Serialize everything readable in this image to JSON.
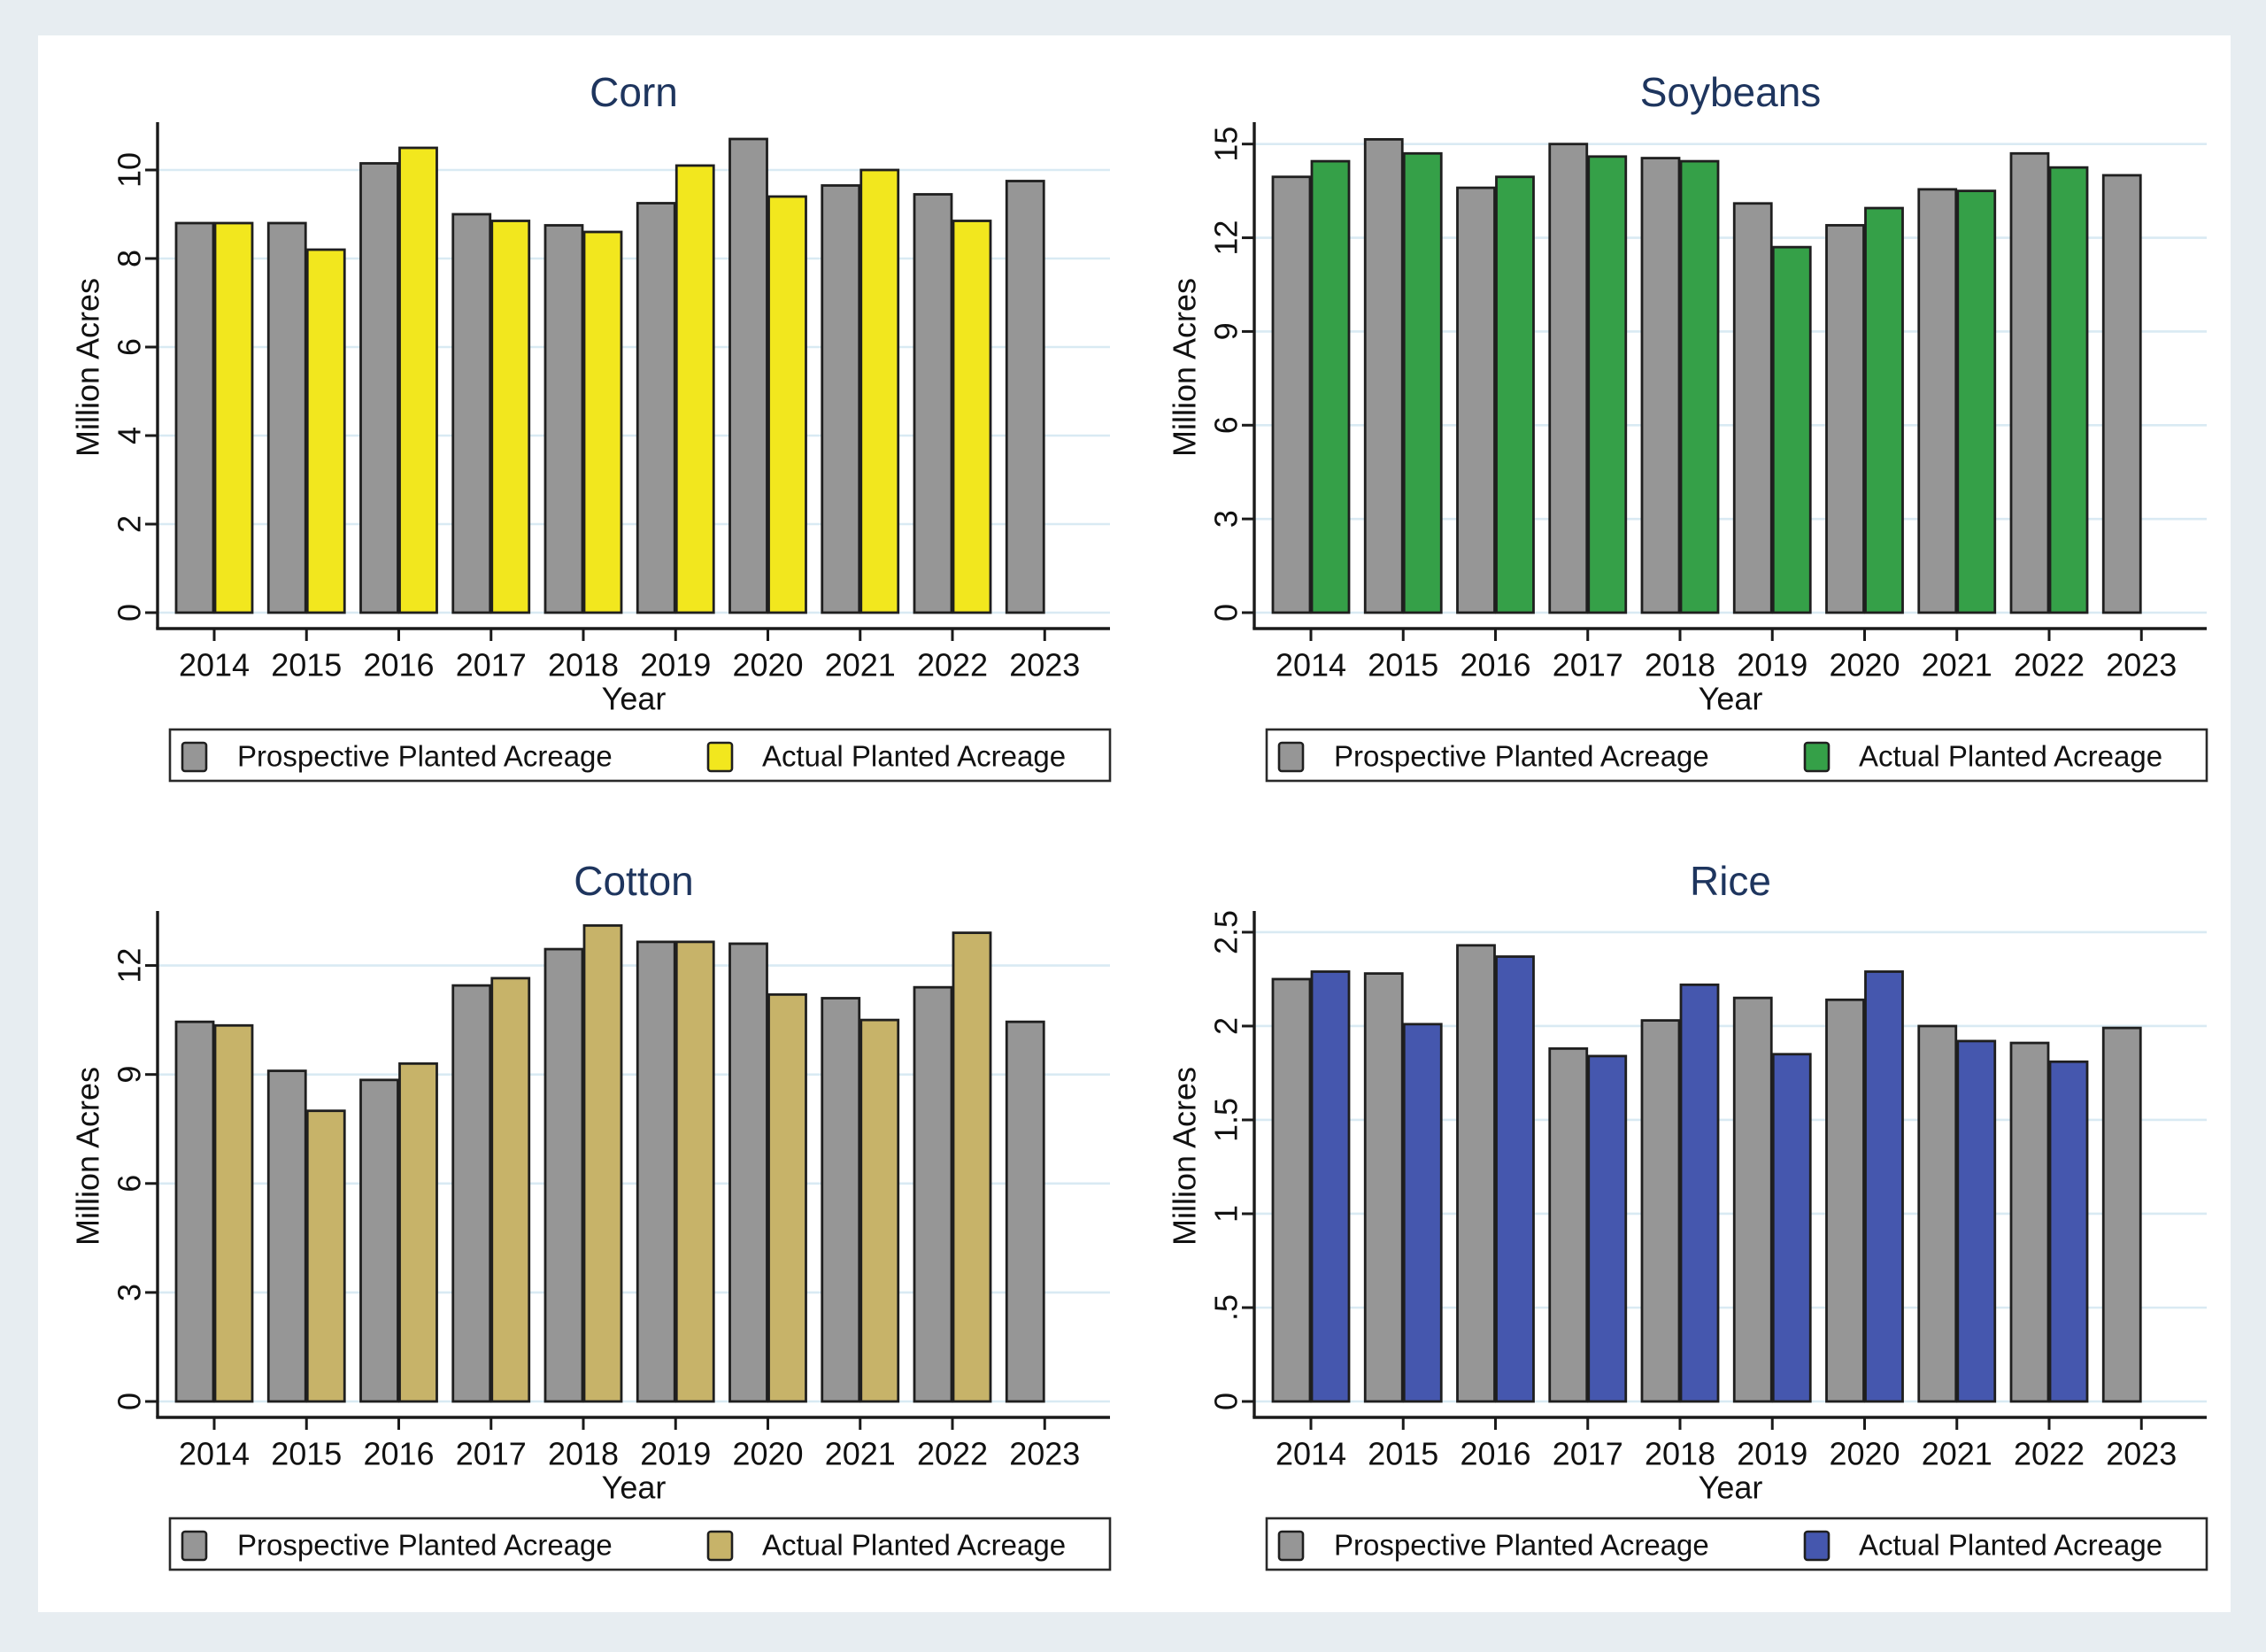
{
  "page": {
    "background_color": "#e7edf1",
    "canvas_color": "#ffffff",
    "grid_color": "#d9eaf3",
    "axis_color": "#1a1a1a",
    "bar_outline_color": "#1f1f1f",
    "title_color": "#1e355e",
    "tick_label_color": "#111111",
    "legend_border_color": "#2a2a2a"
  },
  "chart_data": [
    {
      "type": "bar",
      "title": "Corn",
      "xlabel": "Year",
      "ylabel": "Million Acres",
      "categories": [
        "2014",
        "2015",
        "2016",
        "2017",
        "2018",
        "2019",
        "2020",
        "2021",
        "2022",
        "2023"
      ],
      "series": [
        {
          "name": "Prospective Planted Acreage",
          "color": "#969696",
          "values": [
            8.8,
            8.8,
            10.15,
            9.0,
            8.75,
            9.25,
            10.7,
            9.65,
            9.45,
            9.75
          ]
        },
        {
          "name": "Actual Planted Acreage",
          "color": "#f2e71e",
          "values": [
            8.8,
            8.2,
            10.5,
            8.85,
            8.6,
            10.1,
            9.4,
            10.0,
            8.85,
            null
          ]
        }
      ],
      "yticks": [
        0,
        2,
        4,
        6,
        8,
        10
      ],
      "ytick_labels": [
        "0",
        "2",
        "4",
        "6",
        "8",
        "10"
      ],
      "ylim": [
        0,
        11.08
      ],
      "grid": true,
      "legend_position": "bottom"
    },
    {
      "type": "bar",
      "title": "Soybeans",
      "xlabel": "Year",
      "ylabel": "Million Acres",
      "categories": [
        "2014",
        "2015",
        "2016",
        "2017",
        "2018",
        "2019",
        "2020",
        "2021",
        "2022",
        "2023"
      ],
      "series": [
        {
          "name": "Prospective Planted Acreage",
          "color": "#969696",
          "values": [
            13.95,
            15.15,
            13.6,
            15.0,
            14.55,
            13.1,
            12.4,
            13.55,
            14.7,
            14.0
          ]
        },
        {
          "name": "Actual Planted Acreage",
          "color": "#35a048",
          "values": [
            14.45,
            14.7,
            13.95,
            14.6,
            14.45,
            11.7,
            12.95,
            13.5,
            14.25,
            null
          ]
        }
      ],
      "yticks": [
        0,
        3,
        6,
        9,
        12,
        15
      ],
      "ytick_labels": [
        "0",
        "3",
        "6",
        "9",
        "12",
        "15"
      ],
      "ylim": [
        0,
        15.7
      ],
      "grid": true,
      "legend_position": "bottom"
    },
    {
      "type": "bar",
      "title": "Cotton",
      "xlabel": "Year",
      "ylabel": "Million Acres",
      "categories": [
        "2014",
        "2015",
        "2016",
        "2017",
        "2018",
        "2019",
        "2020",
        "2021",
        "2022",
        "2023"
      ],
      "series": [
        {
          "name": "Prospective Planted Acreage",
          "color": "#969696",
          "values": [
            10.45,
            9.1,
            8.85,
            11.45,
            12.45,
            12.65,
            12.6,
            11.1,
            11.4,
            10.45
          ]
        },
        {
          "name": "Actual Planted Acreage",
          "color": "#c7b369",
          "values": [
            10.35,
            8.0,
            9.3,
            11.65,
            13.1,
            12.65,
            11.2,
            10.5,
            12.9,
            null
          ]
        }
      ],
      "yticks": [
        0,
        3,
        6,
        9,
        12
      ],
      "ytick_labels": [
        "0",
        "3",
        "6",
        "9",
        "12"
      ],
      "ylim": [
        0,
        13.5
      ],
      "grid": true,
      "legend_position": "bottom"
    },
    {
      "type": "bar",
      "title": "Rice",
      "xlabel": "Year",
      "ylabel": "Million Acres",
      "categories": [
        "2014",
        "2015",
        "2016",
        "2017",
        "2018",
        "2019",
        "2020",
        "2021",
        "2022",
        "2023"
      ],
      "series": [
        {
          "name": "Prospective Planted Acreage",
          "color": "#969696",
          "values": [
            2.25,
            2.28,
            2.43,
            1.88,
            2.03,
            2.15,
            2.14,
            2.0,
            1.91,
            1.99
          ]
        },
        {
          "name": "Actual Planted Acreage",
          "color": "#4557ae",
          "values": [
            2.29,
            2.01,
            2.37,
            1.84,
            2.22,
            1.85,
            2.29,
            1.92,
            1.81,
            null
          ]
        }
      ],
      "yticks": [
        0,
        0.5,
        1,
        1.5,
        2,
        2.5
      ],
      "ytick_labels": [
        "0",
        ".5",
        "1",
        "1.5",
        "2",
        "2.5"
      ],
      "ylim": [
        0,
        2.613
      ],
      "grid": true,
      "legend_position": "bottom"
    }
  ]
}
